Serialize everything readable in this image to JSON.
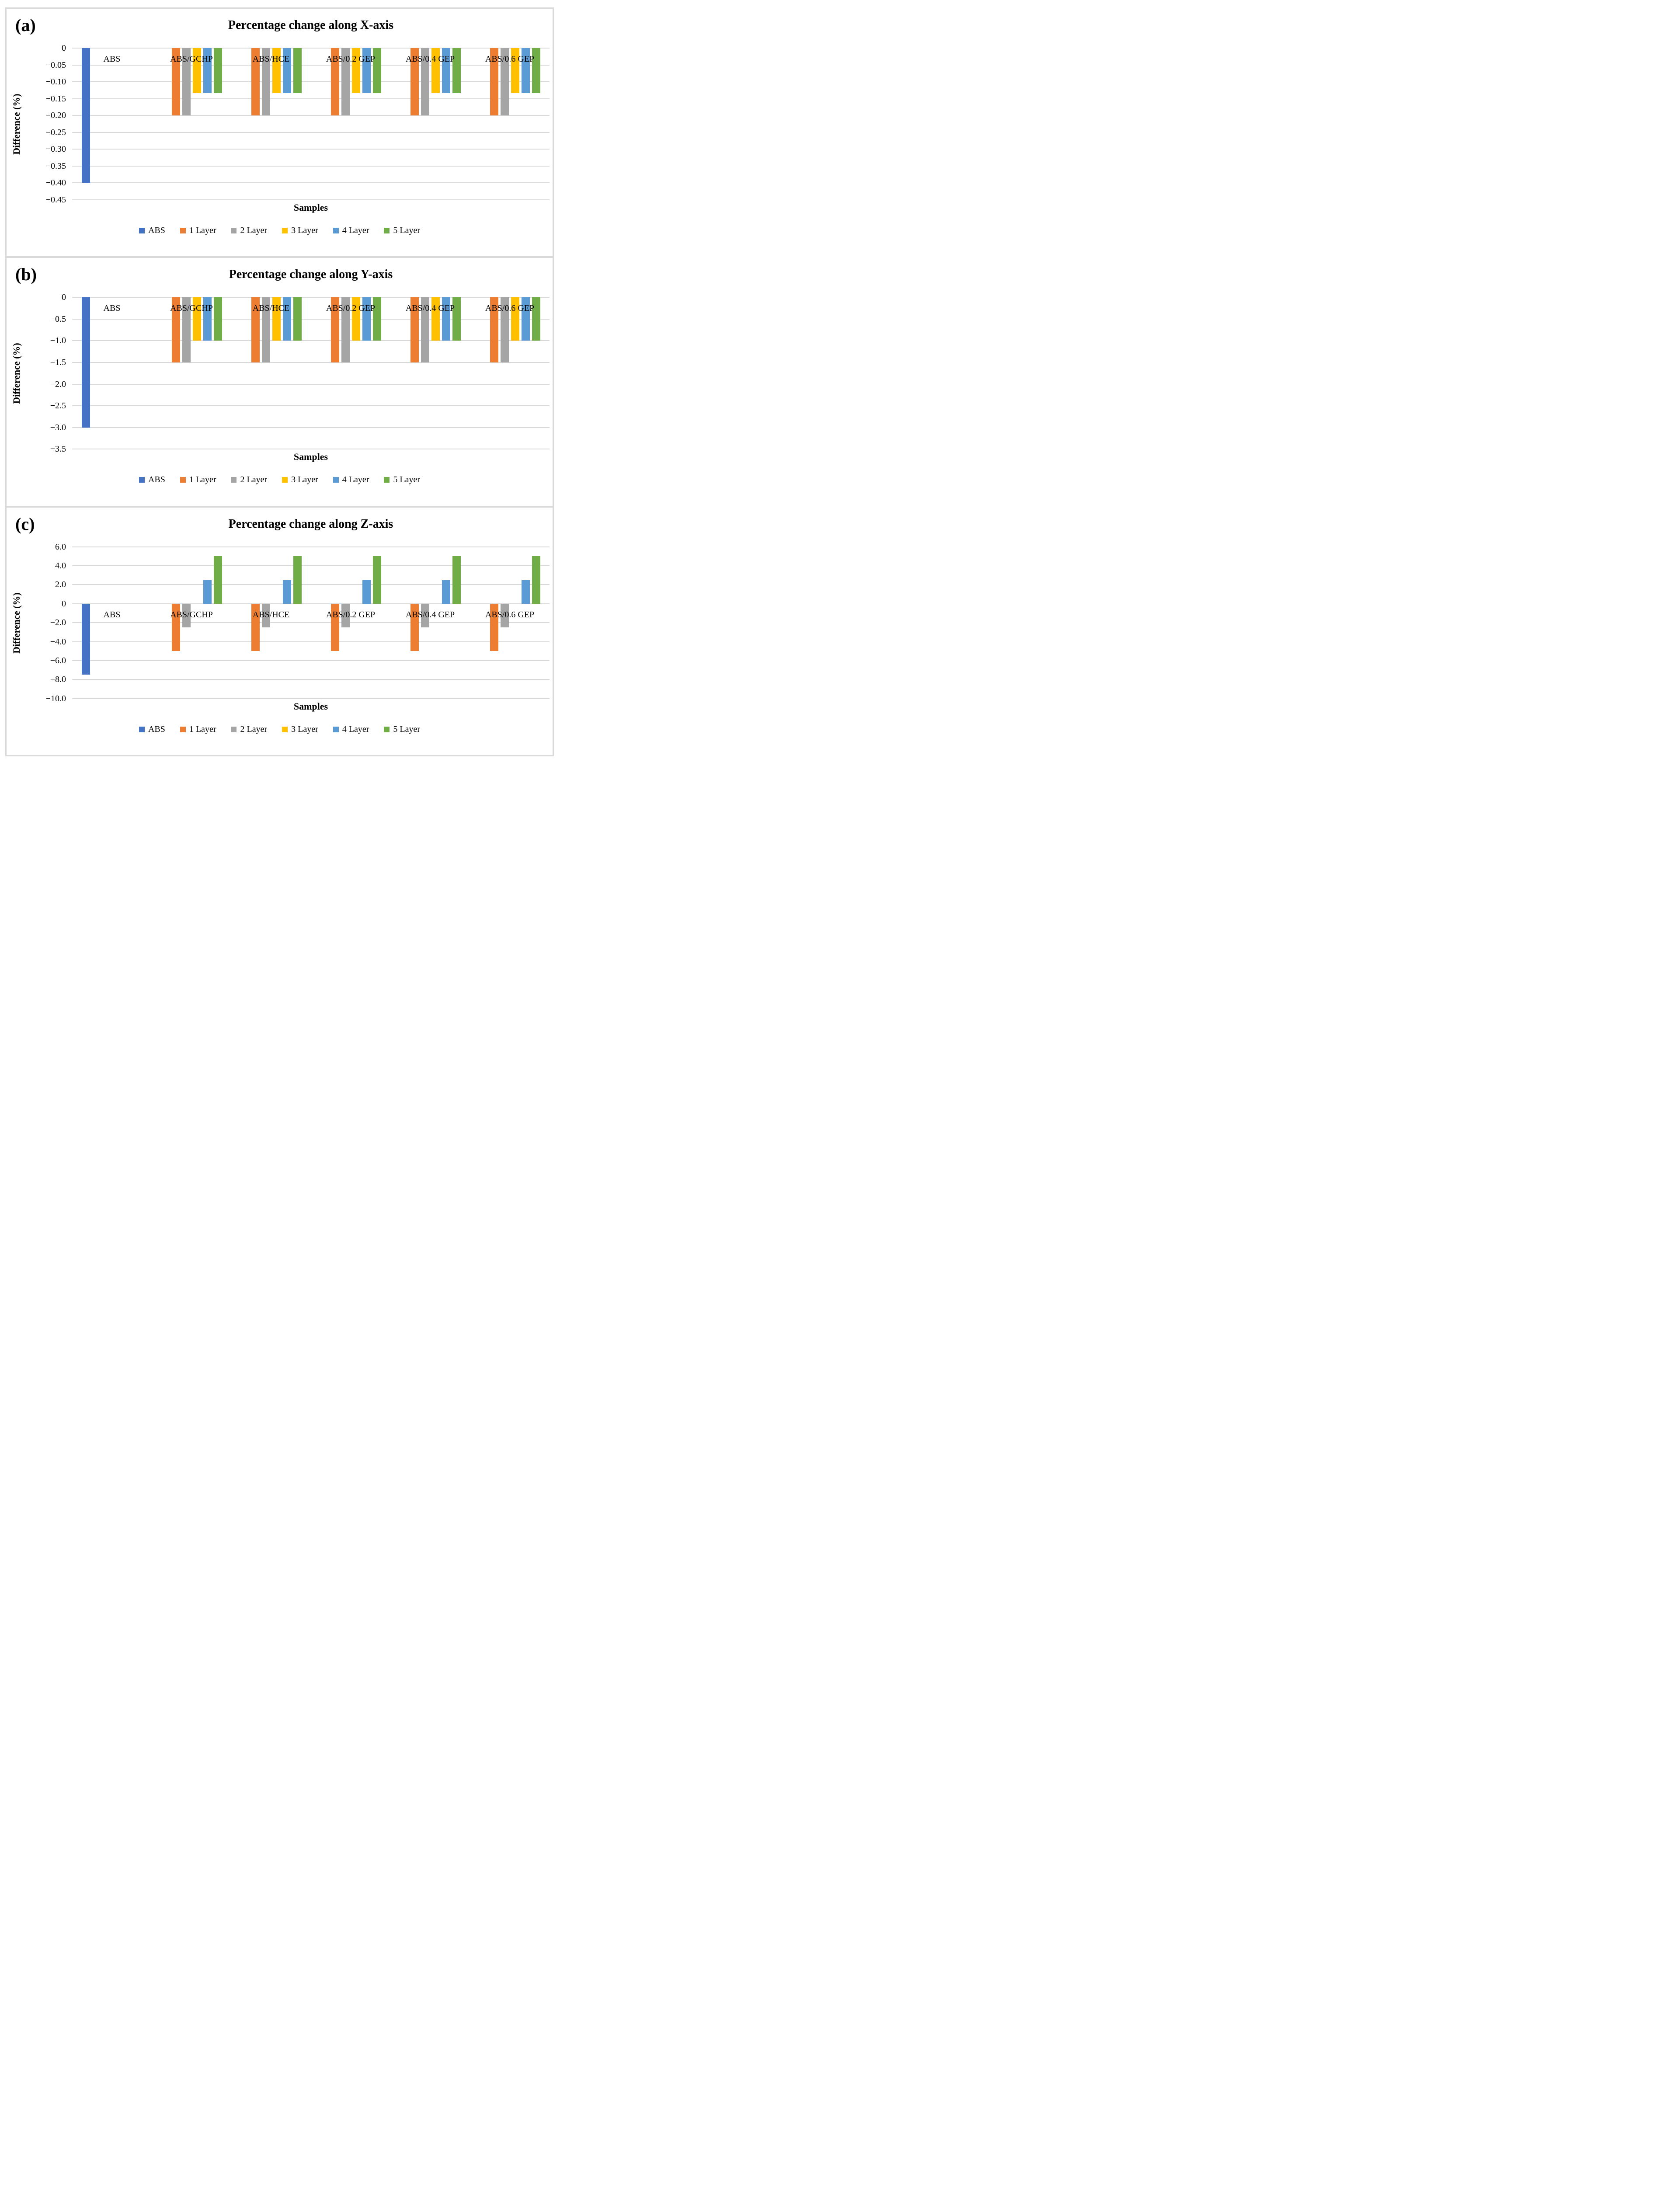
{
  "figure_border_color": "#d9d9d9",
  "gridline_color": "#d9d9d9",
  "chart_data": [
    {
      "type": "bar",
      "panel_label": "(a)",
      "title": "Percentage change along X-axis",
      "ylabel": "Difference (%)",
      "xlabel": "Samples",
      "grid": "horizontal",
      "legend_position": "bottom",
      "ymax": 0,
      "ymin": -0.45,
      "yticks": [
        {
          "label": "0",
          "value": 0
        },
        {
          "label": "−0.05",
          "value": -0.05
        },
        {
          "label": "−0.10",
          "value": -0.1
        },
        {
          "label": "−0.15",
          "value": -0.15
        },
        {
          "label": "−0.20",
          "value": -0.2
        },
        {
          "label": "−0.25",
          "value": -0.25
        },
        {
          "label": "−0.30",
          "value": -0.3
        },
        {
          "label": "−0.35",
          "value": -0.35
        },
        {
          "label": "−0.40",
          "value": -0.4
        },
        {
          "label": "−0.45",
          "value": -0.45
        }
      ],
      "categories": [
        "ABS",
        "ABS/GCHP",
        "ABS/HCE",
        "ABS/0.2 GEP",
        "ABS/0.4 GEP",
        "ABS/0.6 GEP"
      ],
      "series": [
        {
          "name": "ABS",
          "color": "#4472C4",
          "values": [
            -0.4,
            0,
            0,
            0,
            0,
            0
          ]
        },
        {
          "name": "1 Layer",
          "color": "#ED7D31",
          "values": [
            0,
            -0.2,
            -0.2,
            -0.2,
            -0.2,
            -0.2
          ]
        },
        {
          "name": "2 Layer",
          "color": "#A5A5A5",
          "values": [
            0,
            -0.2,
            -0.2,
            -0.2,
            -0.2,
            -0.2
          ]
        },
        {
          "name": "3 Layer",
          "color": "#FFC000",
          "values": [
            0,
            -0.133,
            -0.133,
            -0.133,
            -0.133,
            -0.133
          ]
        },
        {
          "name": "4 Layer",
          "color": "#5B9BD5",
          "values": [
            0,
            -0.133,
            -0.133,
            -0.133,
            -0.133,
            -0.133
          ]
        },
        {
          "name": "5 Layer",
          "color": "#70AD47",
          "values": [
            0,
            -0.133,
            -0.133,
            -0.133,
            -0.133,
            -0.133
          ]
        }
      ]
    },
    {
      "type": "bar",
      "panel_label": "(b)",
      "title": "Percentage change along Y-axis",
      "ylabel": "Difference (%)",
      "xlabel": "Samples",
      "grid": "horizontal",
      "legend_position": "bottom",
      "ymax": 0,
      "ymin": -3.5,
      "yticks": [
        {
          "label": "0",
          "value": 0
        },
        {
          "label": "−0.5",
          "value": -0.5
        },
        {
          "label": "−1.0",
          "value": -1.0
        },
        {
          "label": "−1.5",
          "value": -1.5
        },
        {
          "label": "−2.0",
          "value": -2.0
        },
        {
          "label": "−2.5",
          "value": -2.5
        },
        {
          "label": "−3.0",
          "value": -3.0
        },
        {
          "label": "−3.5",
          "value": -3.5
        }
      ],
      "categories": [
        "ABS",
        "ABS/GCHP",
        "ABS/HCE",
        "ABS/0.2 GEP",
        "ABS/0.4 GEP",
        "ABS/0.6 GEP"
      ],
      "series": [
        {
          "name": "ABS",
          "color": "#4472C4",
          "values": [
            -3.0,
            0,
            0,
            0,
            0,
            0
          ]
        },
        {
          "name": "1 Layer",
          "color": "#ED7D31",
          "values": [
            0,
            -1.5,
            -1.5,
            -1.5,
            -1.5,
            -1.5
          ]
        },
        {
          "name": "2 Layer",
          "color": "#A5A5A5",
          "values": [
            0,
            -1.5,
            -1.5,
            -1.5,
            -1.5,
            -1.5
          ]
        },
        {
          "name": "3 Layer",
          "color": "#FFC000",
          "values": [
            0,
            -1.0,
            -1.0,
            -1.0,
            -1.0,
            -1.0
          ]
        },
        {
          "name": "4 Layer",
          "color": "#5B9BD5",
          "values": [
            0,
            -1.0,
            -1.0,
            -1.0,
            -1.0,
            -1.0
          ]
        },
        {
          "name": "5 Layer",
          "color": "#70AD47",
          "values": [
            0,
            -1.0,
            -1.0,
            -1.0,
            -1.0,
            -1.0
          ]
        }
      ]
    },
    {
      "type": "bar",
      "panel_label": "(c)",
      "title": "Percentage change along Z-axis",
      "ylabel": "Difference (%)",
      "xlabel": "Samples",
      "grid": "horizontal",
      "legend_position": "bottom",
      "ymax": 6.0,
      "ymin": -10.0,
      "yticks": [
        {
          "label": "6.0",
          "value": 6.0
        },
        {
          "label": "4.0",
          "value": 4.0
        },
        {
          "label": "2.0",
          "value": 2.0
        },
        {
          "label": "0",
          "value": 0
        },
        {
          "label": "−2.0",
          "value": -2.0
        },
        {
          "label": "−4.0",
          "value": -4.0
        },
        {
          "label": "−6.0",
          "value": -6.0
        },
        {
          "label": "−8.0",
          "value": -8.0
        },
        {
          "label": "−10.0",
          "value": -10.0
        }
      ],
      "categories": [
        "ABS",
        "ABS/GCHP",
        "ABS/HCE",
        "ABS/0.2 GEP",
        "ABS/0.4 GEP",
        "ABS/0.6 GEP"
      ],
      "series": [
        {
          "name": "ABS",
          "color": "#4472C4",
          "values": [
            -7.5,
            0,
            0,
            0,
            0,
            0
          ]
        },
        {
          "name": "1 Layer",
          "color": "#ED7D31",
          "values": [
            0,
            -5.0,
            -5.0,
            -5.0,
            -5.0,
            -5.0
          ]
        },
        {
          "name": "2 Layer",
          "color": "#A5A5A5",
          "values": [
            0,
            -2.5,
            -2.5,
            -2.5,
            -2.5,
            -2.5
          ]
        },
        {
          "name": "3 Layer",
          "color": "#FFC000",
          "values": [
            0,
            0,
            0,
            0,
            0,
            0
          ]
        },
        {
          "name": "4 Layer",
          "color": "#5B9BD5",
          "values": [
            0,
            2.5,
            2.5,
            2.5,
            2.5,
            2.5
          ]
        },
        {
          "name": "5 Layer",
          "color": "#70AD47",
          "values": [
            0,
            5.0,
            5.0,
            5.0,
            5.0,
            5.0
          ]
        }
      ]
    }
  ]
}
